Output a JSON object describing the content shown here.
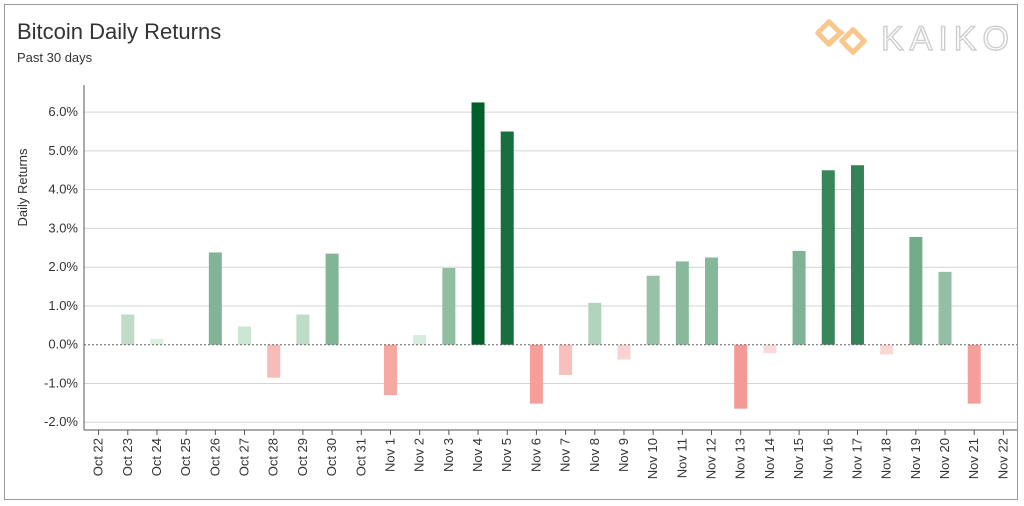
{
  "header": {
    "title": "Bitcoin Daily Returns",
    "subtitle": "Past 30 days"
  },
  "logo": {
    "text": "KAIKO",
    "icon": "kaiko-logo-icon",
    "color": "#f7c78e"
  },
  "chart_data": {
    "type": "bar",
    "title": "Bitcoin Daily Returns",
    "subtitle": "Past 30 days",
    "xlabel": "",
    "ylabel": "Daily Returns",
    "ylim": [
      -2.2,
      6.7
    ],
    "yticks": [
      -2.0,
      -1.0,
      0.0,
      1.0,
      2.0,
      3.0,
      4.0,
      5.0,
      6.0
    ],
    "ytick_labels": [
      "-2.0%",
      "-1.0%",
      "0.0%",
      "1.0%",
      "2.0%",
      "3.0%",
      "4.0%",
      "5.0%",
      "6.0%"
    ],
    "grid": "y",
    "zero_line": "dotted",
    "categories": [
      "Oct 22",
      "Oct 23",
      "Oct 24",
      "Oct 25",
      "Oct 26",
      "Oct 27",
      "Oct 28",
      "Oct 29",
      "Oct 30",
      "Oct 31",
      "Nov 1",
      "Nov 2",
      "Nov 3",
      "Nov 4",
      "Nov 5",
      "Nov 6",
      "Nov 7",
      "Nov 8",
      "Nov 9",
      "Nov 10",
      "Nov 11",
      "Nov 12",
      "Nov 13",
      "Nov 14",
      "Nov 15",
      "Nov 16",
      "Nov 17",
      "Nov 18",
      "Nov 19",
      "Nov 20",
      "Nov 21",
      "Nov 22"
    ],
    "values": [
      0.0,
      0.78,
      0.15,
      0.0,
      2.38,
      0.47,
      -0.85,
      0.78,
      2.35,
      0.0,
      -1.3,
      0.25,
      1.98,
      6.25,
      5.5,
      -1.52,
      -0.78,
      1.08,
      -0.38,
      1.78,
      2.15,
      2.25,
      -1.65,
      -0.22,
      2.42,
      4.5,
      4.63,
      -0.25,
      2.78,
      1.88,
      -1.52,
      0.0
    ],
    "colors": {
      "positive_dark": "#00602b",
      "positive_light": "#e6f6e8",
      "negative_dark": "#f49a94",
      "negative_light": "#fde8e8",
      "grid": "#d4d4d4",
      "axis": "#555555"
    }
  }
}
